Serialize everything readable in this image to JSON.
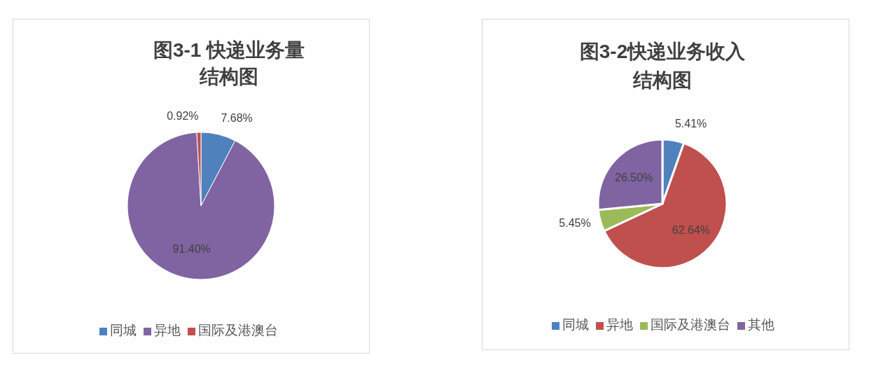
{
  "chart_data": [
    {
      "type": "pie",
      "title": "图3-1 快递业务量结构图",
      "categories": [
        "同城",
        "异地",
        "国际及港澳台"
      ],
      "values": [
        7.68,
        91.4,
        0.92
      ],
      "colors": [
        "#4f81bd",
        "#8064a2",
        "#c0504d"
      ],
      "value_labels": [
        "7.68%",
        "91.40%",
        "0.92%"
      ],
      "legend": "bottom"
    },
    {
      "type": "pie",
      "title": "图3-2快递业务收入结构图",
      "categories": [
        "同城",
        "异地",
        "国际及港澳台",
        "其他"
      ],
      "values": [
        5.41,
        62.64,
        5.45,
        26.5
      ],
      "colors": [
        "#4f81bd",
        "#c0504d",
        "#9bbb59",
        "#8064a2"
      ],
      "value_labels": [
        "5.41%",
        "62.64%",
        "5.45%",
        "26.50%"
      ],
      "legend": "bottom"
    }
  ]
}
